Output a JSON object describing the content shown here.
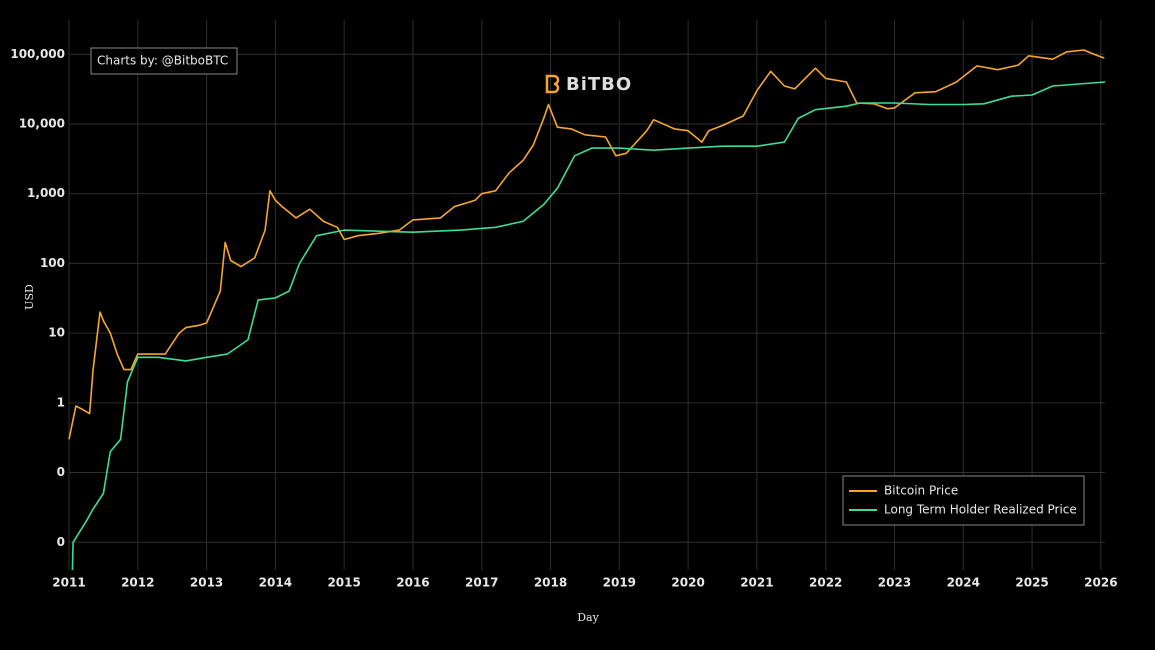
{
  "chart_data": {
    "type": "line",
    "annotation": "Charts by: @BitboBTC",
    "logo_text": "BiTBO",
    "x_label": "Day",
    "y_label": "USD",
    "log_y": true,
    "grid": true,
    "legend_position": "bottom-right",
    "xlim": [
      2011,
      2026.06
    ],
    "xticks": [
      2011,
      2012,
      2013,
      2014,
      2015,
      2016,
      2017,
      2018,
      2019,
      2020,
      2021,
      2022,
      2023,
      2024,
      2025,
      2026
    ],
    "ylim": [
      0.004,
      310000
    ],
    "yticks": [
      {
        "value": 0.01,
        "label": "0"
      },
      {
        "value": 0.1,
        "label": "0"
      },
      1,
      10,
      100,
      {
        "value": 1000,
        "label": "1,000"
      },
      {
        "value": 10000,
        "label": "10,000"
      },
      {
        "value": 100000,
        "label": "100,000"
      }
    ],
    "series": [
      {
        "name": "Bitcoin Price",
        "color": "#f5a631",
        "x": [
          2011.0,
          2011.1,
          2011.2,
          2011.3,
          2011.35,
          2011.45,
          2011.5,
          2011.6,
          2011.7,
          2011.8,
          2011.9,
          2012.0,
          2012.2,
          2012.4,
          2012.6,
          2012.7,
          2012.9,
          2013.0,
          2013.2,
          2013.27,
          2013.35,
          2013.5,
          2013.7,
          2013.85,
          2013.92,
          2014.0,
          2014.1,
          2014.3,
          2014.5,
          2014.7,
          2014.9,
          2015.0,
          2015.2,
          2015.5,
          2015.8,
          2016.0,
          2016.4,
          2016.6,
          2016.9,
          2017.0,
          2017.2,
          2017.4,
          2017.6,
          2017.75,
          2017.9,
          2017.97,
          2018.1,
          2018.3,
          2018.5,
          2018.8,
          2018.95,
          2019.1,
          2019.4,
          2019.5,
          2019.8,
          2020.0,
          2020.2,
          2020.3,
          2020.5,
          2020.8,
          2021.0,
          2021.2,
          2021.4,
          2021.55,
          2021.85,
          2022.0,
          2022.3,
          2022.45,
          2022.7,
          2022.9,
          2023.0,
          2023.3,
          2023.6,
          2023.9,
          2024.2,
          2024.5,
          2024.8,
          2024.95,
          2025.3,
          2025.5,
          2025.75,
          2025.9,
          2026.05
        ],
        "values": [
          0.3,
          0.9,
          0.8,
          0.7,
          3,
          20,
          15,
          10,
          5,
          3,
          3,
          5,
          5,
          5,
          10,
          12,
          13,
          14,
          40,
          200,
          110,
          90,
          120,
          300,
          1100,
          800,
          650,
          450,
          600,
          400,
          330,
          220,
          250,
          270,
          300,
          420,
          450,
          650,
          800,
          1000,
          1100,
          2000,
          3000,
          5000,
          12000,
          19000,
          9000,
          8500,
          7000,
          6500,
          3500,
          3800,
          8000,
          11500,
          8500,
          8000,
          5500,
          8000,
          9500,
          13000,
          30000,
          57000,
          35000,
          32000,
          63000,
          45000,
          40000,
          20000,
          19500,
          16500,
          17000,
          28000,
          29000,
          40000,
          68000,
          60000,
          70000,
          95000,
          85000,
          108000,
          115000,
          100000,
          88000
        ]
      },
      {
        "name": "Long Term Holder Realized Price",
        "color": "#3ddc97",
        "x": [
          2011.05,
          2011.06,
          2011.25,
          2011.35,
          2011.5,
          2011.6,
          2011.75,
          2011.85,
          2012.0,
          2012.3,
          2012.7,
          2013.0,
          2013.3,
          2013.6,
          2013.75,
          2014.0,
          2014.2,
          2014.35,
          2014.6,
          2015.0,
          2015.5,
          2016.0,
          2016.7,
          2017.2,
          2017.6,
          2017.9,
          2018.1,
          2018.35,
          2018.6,
          2019.0,
          2019.5,
          2020.0,
          2020.5,
          2021.0,
          2021.4,
          2021.6,
          2021.85,
          2022.3,
          2022.5,
          2023.0,
          2023.5,
          2024.0,
          2024.3,
          2024.7,
          2025.0,
          2025.3,
          2026.06
        ],
        "values": [
          0.004,
          0.01,
          0.02,
          0.03,
          0.05,
          0.2,
          0.3,
          2,
          4.5,
          4.5,
          4,
          4.5,
          5,
          8,
          30,
          32,
          40,
          100,
          250,
          300,
          290,
          280,
          300,
          330,
          400,
          700,
          1200,
          3500,
          4500,
          4500,
          4200,
          4500,
          4800,
          4800,
          5500,
          12000,
          16000,
          18000,
          20000,
          20000,
          19000,
          19000,
          19500,
          25000,
          26000,
          35000,
          40000
        ]
      }
    ]
  }
}
